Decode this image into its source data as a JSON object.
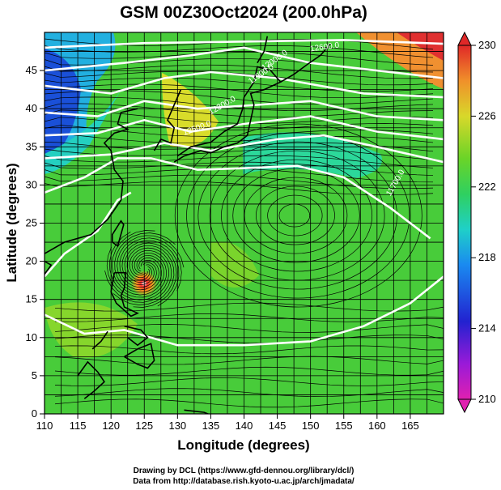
{
  "figure": {
    "title": "GSM 00Z30Oct2024 (200.0hPa)",
    "x_axis_label": "Longitude (degrees)",
    "y_axis_label": "Latitude  (degrees)",
    "credit_line_1": "Drawing by DCL (https://www.gfd-dennou.org/library/dcl/)",
    "credit_line_2": "Data from http://database.rish.kyoto-u.ac.jp/arch/jmadata/"
  },
  "map": {
    "lon_range": [
      110,
      170
    ],
    "lat_range": [
      0,
      50
    ],
    "lon_ticks": [
      "110",
      "115",
      "120",
      "125",
      "130",
      "135",
      "140",
      "145",
      "150",
      "155",
      "160",
      "165"
    ],
    "lat_ticks": [
      "0",
      "5",
      "10",
      "15",
      "20",
      "25",
      "30",
      "35",
      "40",
      "45"
    ],
    "grid": true,
    "contour_labels": [
      "12600.0",
      "12300.0",
      "12500.0",
      "11900.0",
      "12000.0",
      "11700.0"
    ]
  },
  "colorbar": {
    "tick_labels": [
      "210",
      "214",
      "218",
      "222",
      "226",
      "230"
    ],
    "colors": [
      "#d61fb4",
      "#1a1ad0",
      "#1aa0f0",
      "#1fd0c0",
      "#3fd83a",
      "#8ad82a",
      "#e6d82a",
      "#f08a2a",
      "#e02a2a"
    ]
  }
}
